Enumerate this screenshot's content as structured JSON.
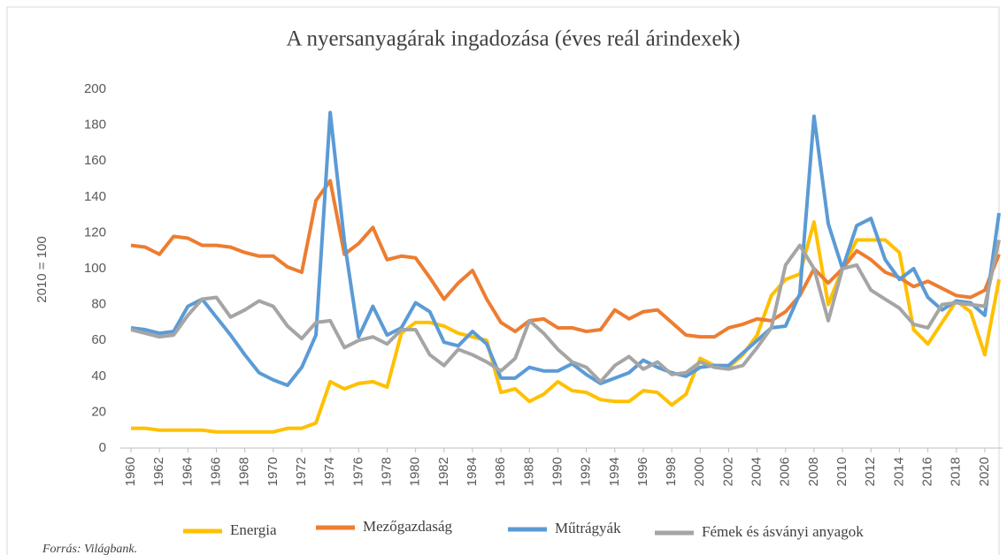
{
  "chart_data": {
    "type": "line",
    "title": "A nyersanyagárak ingadozása (éves reál árindexek)",
    "y_label": "2010 = 100",
    "source": "Forrás: Világbank.",
    "x": [
      1960,
      1961,
      1962,
      1963,
      1964,
      1965,
      1966,
      1967,
      1968,
      1969,
      1970,
      1971,
      1972,
      1973,
      1974,
      1975,
      1976,
      1977,
      1978,
      1979,
      1980,
      1981,
      1982,
      1983,
      1984,
      1985,
      1986,
      1987,
      1988,
      1989,
      1990,
      1991,
      1992,
      1993,
      1994,
      1995,
      1996,
      1997,
      1998,
      1999,
      2000,
      2001,
      2002,
      2003,
      2004,
      2005,
      2006,
      2007,
      2008,
      2009,
      2010,
      2011,
      2012,
      2013,
      2014,
      2015,
      2016,
      2017,
      2018,
      2019,
      2020,
      2021
    ],
    "xlim": [
      1960,
      2021
    ],
    "xticks": [
      1960,
      1962,
      1964,
      1966,
      1968,
      1970,
      1972,
      1974,
      1976,
      1978,
      1980,
      1982,
      1984,
      1986,
      1988,
      1990,
      1992,
      1994,
      1996,
      1998,
      2000,
      2002,
      2004,
      2006,
      2008,
      2010,
      2012,
      2014,
      2016,
      2018,
      2020
    ],
    "ylim": [
      0,
      200
    ],
    "yticks": [
      0,
      20,
      40,
      60,
      80,
      100,
      120,
      140,
      160,
      180,
      200
    ],
    "grid": false,
    "legend": "bottom",
    "series": [
      {
        "name": "Energia",
        "color": "#FFC000",
        "values": [
          11,
          11,
          10,
          10,
          10,
          10,
          9,
          9,
          9,
          9,
          9,
          11,
          11,
          14,
          37,
          33,
          36,
          37,
          34,
          64,
          70,
          70,
          68,
          64,
          62,
          60,
          31,
          33,
          26,
          30,
          37,
          32,
          31,
          27,
          26,
          26,
          32,
          31,
          24,
          30,
          50,
          46,
          45,
          52,
          63,
          85,
          94,
          97,
          126,
          80,
          100,
          116,
          116,
          116,
          109,
          66,
          58,
          70,
          82,
          76,
          52,
          94
        ]
      },
      {
        "name": "Mezőgazdaság",
        "color": "#ED7D31",
        "values": [
          113,
          112,
          108,
          118,
          117,
          113,
          113,
          112,
          109,
          107,
          107,
          101,
          98,
          138,
          149,
          108,
          114,
          123,
          105,
          107,
          106,
          95,
          83,
          92,
          99,
          83,
          70,
          65,
          71,
          72,
          67,
          67,
          65,
          66,
          77,
          72,
          76,
          77,
          70,
          63,
          62,
          62,
          67,
          69,
          72,
          71,
          76,
          85,
          100,
          92,
          100,
          110,
          105,
          98,
          95,
          90,
          93,
          89,
          85,
          84,
          88,
          108
        ]
      },
      {
        "name": "Műtrágyák",
        "color": "#5B9BD5",
        "values": [
          67,
          66,
          64,
          65,
          79,
          83,
          73,
          63,
          52,
          42,
          38,
          35,
          45,
          63,
          187,
          115,
          62,
          79,
          63,
          67,
          81,
          76,
          59,
          57,
          65,
          58,
          39,
          39,
          45,
          43,
          43,
          47,
          41,
          36,
          39,
          42,
          49,
          45,
          42,
          40,
          45,
          46,
          46,
          53,
          60,
          67,
          68,
          86,
          185,
          125,
          100,
          124,
          128,
          105,
          94,
          100,
          84,
          77,
          82,
          81,
          74,
          131
        ]
      },
      {
        "name": "Fémek és ásványi anyagok",
        "color": "#A5A5A5",
        "values": [
          66,
          64,
          62,
          63,
          74,
          83,
          84,
          73,
          77,
          82,
          79,
          68,
          61,
          70,
          71,
          56,
          60,
          62,
          58,
          66,
          66,
          52,
          46,
          55,
          52,
          48,
          43,
          50,
          71,
          64,
          55,
          48,
          45,
          37,
          46,
          51,
          44,
          48,
          41,
          42,
          48,
          45,
          44,
          46,
          56,
          67,
          102,
          113,
          100,
          71,
          100,
          102,
          88,
          83,
          78,
          69,
          67,
          80,
          81,
          80,
          79,
          116
        ]
      }
    ]
  }
}
